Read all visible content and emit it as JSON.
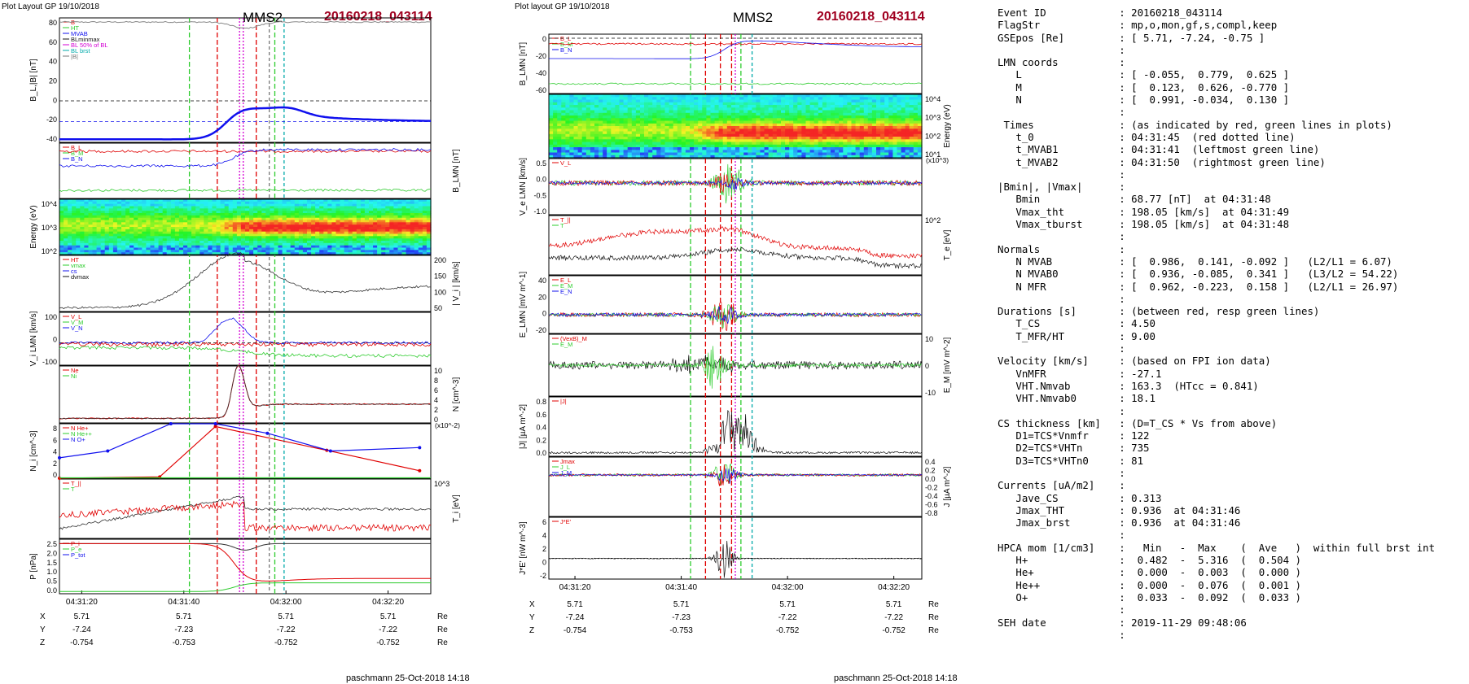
{
  "pages": [
    {
      "header": "Plot Layout GP 19/10/2018",
      "title": "MMS2",
      "event": "20160218_043114",
      "footer": "paschmann 25-Oct-2018 14:18"
    },
    {
      "header": "Plot layout GP 19/10/2018",
      "title": "MMS2",
      "event": "20160218_043114",
      "footer": "paschmann 25-Oct-2018 14:18"
    }
  ],
  "colors": {
    "red": "#e00000",
    "green": "#2ecc2e",
    "blue": "#1010ee",
    "black": "#111111",
    "title_red": "#a00020",
    "magenta": "#d400d4",
    "cyan": "#00aaaa",
    "gray": "#777777"
  },
  "chart_data": [
    {
      "type": "line",
      "time_ticks": [
        "04:31:20",
        "04:31:40",
        "04:32:00",
        "04:32:20"
      ],
      "positions": {
        "labels": [
          "X",
          "Y",
          "Z"
        ],
        "rows": [
          [
            "5.71",
            "5.71",
            "5.71",
            "5.71"
          ],
          [
            "-7.24",
            "-7.23",
            "-7.22",
            "-7.22"
          ],
          [
            "-0.754",
            "-0.753",
            "-0.752",
            "-0.752"
          ]
        ],
        "unit": "Re"
      },
      "panels": [
        {
          "ylabel": "B_L,|B| [nT]",
          "ylim": [
            -40,
            80
          ],
          "ticks": [
            "80",
            "60",
            "40",
            "20",
            "0",
            "-20",
            "-40"
          ],
          "legend": [
            "B",
            "HT",
            "MVAB",
            "BLminmax",
            "BL 50% of BL",
            "BL brst",
            "|B|"
          ]
        },
        {
          "ylabel": "B_LMN [nT]",
          "legend": [
            "B_L",
            "B_M",
            "B_N"
          ]
        },
        {
          "ylabel": "Energy (eV)",
          "ticks": [
            "10^4",
            "10^3",
            "10^2"
          ],
          "kind": "spectrogram"
        },
        {
          "ylabel": "| V_i | [km/s]",
          "ylim": [
            50,
            200
          ],
          "ticks": [
            "200",
            "150",
            "100",
            "50"
          ],
          "legend": [
            "HT",
            "vmax",
            "cs",
            "dvmax"
          ]
        },
        {
          "ylabel": "V_i LMN [km/s]",
          "ticks": [
            "100",
            "0",
            "-100"
          ],
          "legend": [
            "V_L",
            "V_M",
            "V_N"
          ]
        },
        {
          "ylabel": "N [cm^-3]",
          "ylim": [
            0,
            10
          ],
          "ticks": [
            "10",
            "8",
            "6",
            "4",
            "2",
            "0"
          ],
          "legend": [
            "Ne",
            "Ni"
          ]
        },
        {
          "ylabel": "N_i [cm^-3]",
          "ylim": [
            0,
            8
          ],
          "ticks": [
            "8",
            "6",
            "4",
            "2",
            "0"
          ],
          "scale": "(x10^-2)",
          "legend": [
            "N He+",
            "N He++",
            "N O+"
          ],
          "series": [
            {
              "name": "N He++",
              "x": [
                0.0,
                0.27,
                0.42,
                0.72,
                0.97
              ],
              "y": [
                0.0,
                0.2,
                7.6,
                4.1,
                1.1
              ]
            },
            {
              "name": "N O+",
              "x": [
                0.0,
                0.13,
                0.3,
                0.42,
                0.56,
                0.73,
                0.97
              ],
              "y": [
                3.0,
                4.0,
                8.6,
                8.6,
                6.6,
                4.0,
                4.5
              ]
            }
          ]
        },
        {
          "ylabel": "T_i [eV]",
          "ticks": [
            "10^3"
          ],
          "legend": [
            "T_||",
            "T"
          ]
        },
        {
          "ylabel": "P [nPa]",
          "ylim": [
            0,
            2.5
          ],
          "ticks": [
            "2.5",
            "2.0",
            "1.5",
            "1.0",
            "0.5",
            "0.0"
          ],
          "legend": [
            "P_i",
            "P_e",
            "P_tot"
          ]
        }
      ]
    },
    {
      "type": "line",
      "time_ticks": [
        "04:31:20",
        "04:31:40",
        "04:32:00",
        "04:32:20"
      ],
      "positions": {
        "labels": [
          "X",
          "Y",
          "Z"
        ],
        "rows": [
          [
            "5.71",
            "5.71",
            "5.71",
            "5.71"
          ],
          [
            "-7.24",
            "-7.23",
            "-7.22",
            "-7.22"
          ],
          [
            "-0.754",
            "-0.753",
            "-0.752",
            "-0.752"
          ]
        ],
        "unit": "Re"
      },
      "panels": [
        {
          "ylabel": "B_LMN [nT]",
          "ylim": [
            -80,
            0
          ],
          "ticks": [
            "0",
            "-20",
            "-40",
            "-60"
          ],
          "legend": [
            "B_L",
            "B_M",
            "B_N"
          ]
        },
        {
          "ylabel": "Energy (eV)",
          "ticks": [
            "10^4",
            "10^3",
            "10^2",
            "10^1"
          ],
          "kind": "spectrogram"
        },
        {
          "ylabel": "V_e LMN [km/s]",
          "ylim": [
            -1.0,
            0.5
          ],
          "ticks": [
            "0.5",
            "0.0",
            "-0.5",
            "-1.0"
          ],
          "scale": "(x10^3)",
          "legend": [
            "V_L"
          ]
        },
        {
          "ylabel": "T_e [eV]",
          "ticks": [
            "10^2"
          ],
          "legend": [
            "T_||",
            "T"
          ]
        },
        {
          "ylabel": "E_LMN [mV m^-1]",
          "ylim": [
            -20,
            40
          ],
          "ticks": [
            "40",
            "20",
            "0",
            "-20"
          ],
          "legend": [
            "E_L",
            "E_M",
            "E_N"
          ]
        },
        {
          "ylabel": "E_M [mV m^-2]",
          "ticks": [
            "10",
            "0",
            "-10"
          ],
          "legend": [
            "(VexB)_M",
            "E_M"
          ]
        },
        {
          "ylabel": "|J| [µA m^-2]",
          "ylim": [
            0,
            0.9
          ],
          "ticks": [
            "0.8",
            "0.6",
            "0.4",
            "0.2",
            "0.0"
          ],
          "legend": [
            "|J|"
          ]
        },
        {
          "ylabel": "J [µA m^-2]",
          "ylim": [
            -0.8,
            0.4
          ],
          "ticks": [
            "0.4",
            "0.2",
            "0.0",
            "-0.2",
            "-0.4",
            "-0.6",
            "-0.8"
          ],
          "legend": [
            "Jmax",
            "J_L",
            "J_M"
          ]
        },
        {
          "ylabel": "J*E' [nW m^-3]",
          "ylim": [
            -3,
            6
          ],
          "ticks": [
            "6",
            "4",
            "2",
            "0",
            "-2"
          ],
          "legend": [
            "J*E'"
          ]
        }
      ]
    }
  ],
  "info_text": "Event ID            : 20160218_043114\nFlagStr             : mp,o,mon,gf,s,compl,keep\nGSEpos [Re]         : [ 5.71, -7.24, -0.75 ]\n                    :\nLMN coords          :\n   L                : [ -0.055,  0.779,  0.625 ]\n   M                : [  0.123,  0.626, -0.770 ]\n   N                : [  0.991, -0.034,  0.130 ]\n                    :\n Times              : (as indicated by red, green lines in plots)\n   t_0              : 04:31:45  (red dotted line)\n   t_MVAB1          : 04:31:41  (leftmost green line)\n   t_MVAB2          : 04:31:50  (rightmost green line)\n                    :\n|Bmin|, |Vmax|      :\n   Bmin             : 68.77 [nT]  at 04:31:48\n   Vmax_tht         : 198.05 [km/s]  at 04:31:49\n   Vmax_tburst      : 198.05 [km/s]  at 04:31:48\n                    :\nNormals             :\n   N MVAB           : [  0.986,  0.141, -0.092 ]   (L2/L1 = 6.07)\n   N MVAB0          : [  0.936, -0.085,  0.341 ]   (L3/L2 = 54.22)\n   N MFR            : [  0.962, -0.223,  0.158 ]   (L2/L1 = 26.97)\n                    :\nDurations [s]       : (between red, resp green lines)\n   T_CS             : 4.50\n   T_MFR/HT         : 9.00\n                    :\nVelocity [km/s]     : (based on FPI ion data)\n   VnMFR            : -27.1\n   VHT.Nmvab        : 163.3  (HTcc = 0.841)\n   VHT.Nmvab0       : 18.1\n                    :\nCS thickness [km]   : (D=T_CS * Vs from above)\n   D1=TCS*Vnmfr     : 122\n   D2=TCS*VHTn      : 735\n   D3=TCS*VHTn0     : 81\n                    :\nCurrents [uA/m2]    :\n   Jave_CS          : 0.313\n   Jmax_THT         : 0.936  at 04:31:46\n   Jmax_brst        : 0.936  at 04:31:46\n                    :\nHPCA mom [1/cm3]    :   Min   -  Max    (  Ave   )  within full brst int\n   H+               :  0.482  -  5.316  (  0.504 )\n   He+              :  0.000  -  0.003  (  0.000 )\n   He++             :  0.000  -  0.076  (  0.001 )\n   O+               :  0.033  -  0.092  (  0.033 )\n                    :\nSEH date            : 2019-11-29 09:48:06\n                    :"
}
